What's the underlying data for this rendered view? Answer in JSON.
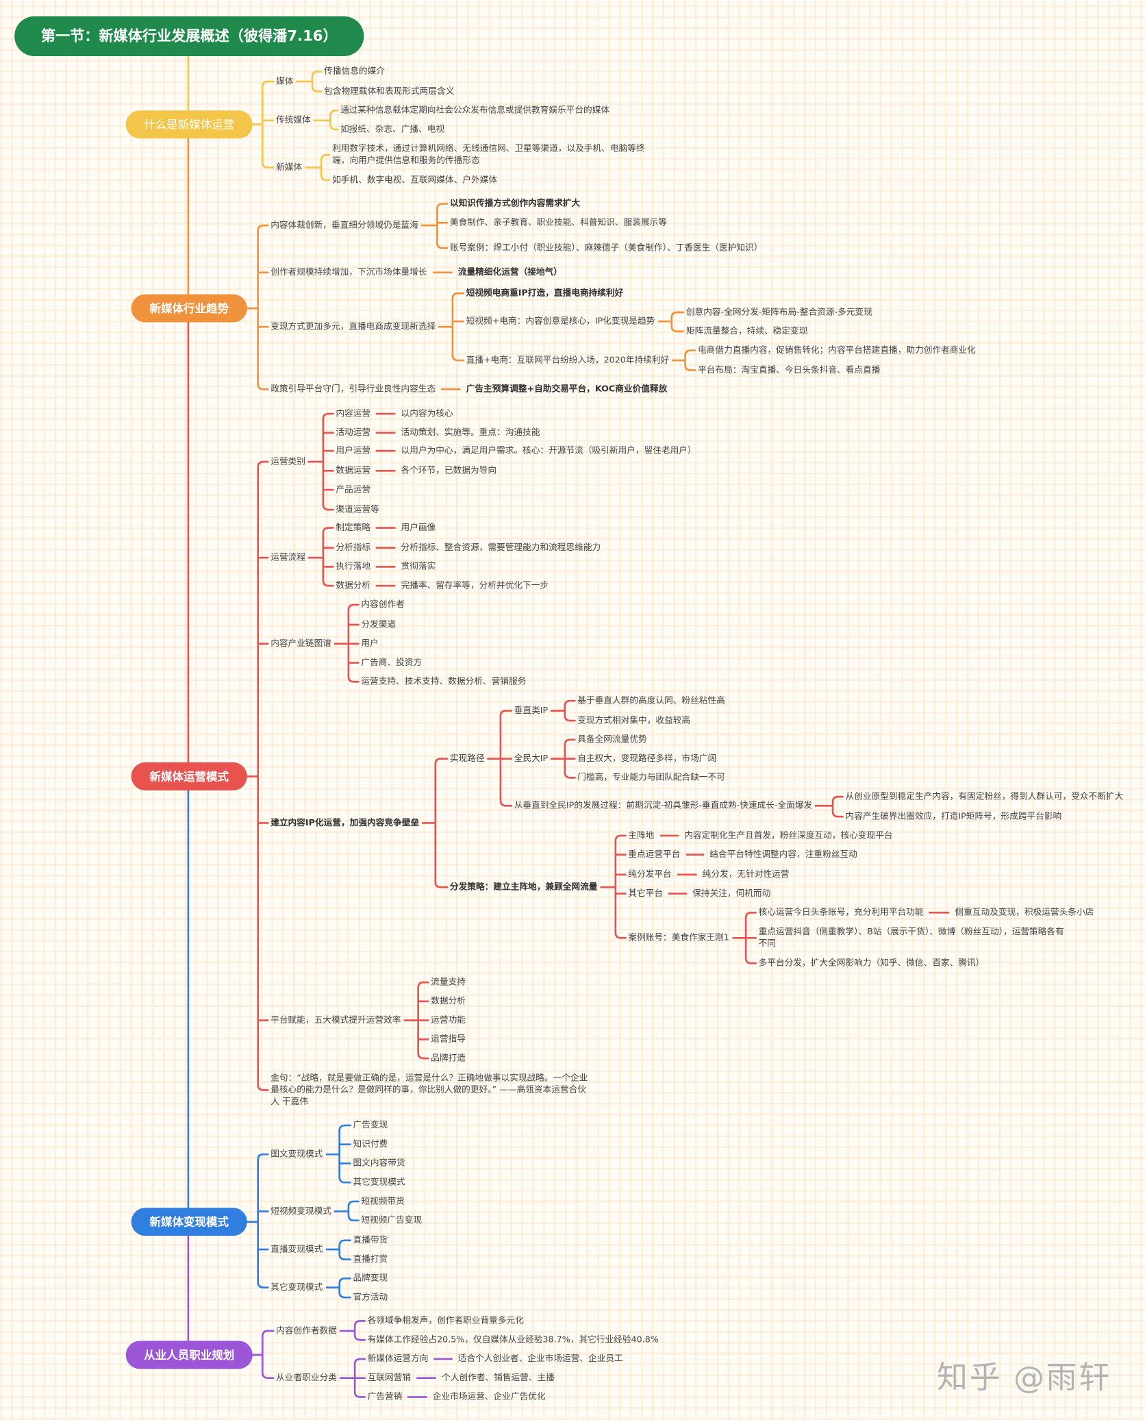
{
  "title": "第一节：新媒体行业发展概述（彼得潘7.16）",
  "watermark": "知乎 @雨轩",
  "colors": {
    "title": "#1f8a4c",
    "yellow": "#f3c64a",
    "orange": "#f0923b",
    "red": "#e8534f",
    "blue": "#2f7ee0",
    "purple": "#9b55d6"
  },
  "sections": [
    {
      "label": "什么是新媒体运营",
      "color": "#f3c64a",
      "branches": [
        {
          "text": "媒体",
          "children": [
            {
              "text": "传播信息的媒介"
            },
            {
              "text": "包含物理载体和表现形式两层含义"
            }
          ]
        },
        {
          "text": "传统媒体",
          "children": [
            {
              "text": "通过某种信息载体定期向社会公众发布信息或提供教育娱乐平台的媒体"
            },
            {
              "text": "如报纸、杂志、广播、电视"
            }
          ]
        },
        {
          "text": "新媒体",
          "children": [
            {
              "text": "利用数字技术，通过计算机网络、无线通信网、卫星等渠道，以及手机、电脑等终端，向用户提供信息和服务的传播形态"
            },
            {
              "text": "如手机、数字电视、互联网媒体、户外媒体"
            }
          ]
        }
      ]
    },
    {
      "label": "新媒体行业趋势",
      "color": "#f0923b",
      "branches": [
        {
          "text": "内容体裁创新，垂直细分领域仍是蓝海",
          "children": [
            {
              "text": "以知识传播方式创作内容需求扩大"
            },
            {
              "text": "美食制作、亲子教育、职业技能、科普知识、服装展示等"
            },
            {
              "text": "账号案例：焊工小付（职业技能）、麻辣德子（美食制作）、丁香医生（医护知识）"
            }
          ]
        },
        {
          "text": "创作者规模持续增加，下沉市场体量增长",
          "value": "流量精细化运营（接地气）"
        },
        {
          "text": "变现方式更加多元，直播电商成变现新选择",
          "children": [
            {
              "text": "短视频电商重IP打造，直播电商持续利好"
            },
            {
              "text": "短视频+电商：内容创意是核心，IP化变现是趋势",
              "children": [
                {
                  "text": "创意内容-全网分发-矩阵布局-整合资源-多元变现"
                },
                {
                  "text": "矩阵流量整合，持续、稳定变现"
                }
              ]
            },
            {
              "text": "直播+电商：互联网平台纷纷入场，2020年持续利好",
              "children": [
                {
                  "text": "电商借力直播内容，促销售转化；内容平台搭建直播，助力创作者商业化"
                },
                {
                  "text": "平台布局：淘宝直播、今日头条抖音、看点直播"
                }
              ]
            }
          ]
        },
        {
          "text": "政策引导平台守门，引导行业良性内容生态",
          "value": "广告主预算调整+自助交易平台，KOC商业价值释放"
        }
      ]
    },
    {
      "label": "新媒体运营模式",
      "color": "#e8534f",
      "branches": [
        {
          "text": "运营类别",
          "children": [
            {
              "text": "内容运营",
              "value": "以内容为核心"
            },
            {
              "text": "活动运营",
              "value": "活动策划、实施等。重点：沟通技能"
            },
            {
              "text": "用户运营",
              "value": "以用户为中心，满足用户需求。核心：开源节流（吸引新用户，留住老用户）"
            },
            {
              "text": "数据运营",
              "value": "各个环节，已数据为导向"
            },
            {
              "text": "产品运营"
            },
            {
              "text": "渠道运营等"
            }
          ]
        },
        {
          "text": "运营流程",
          "children": [
            {
              "text": "制定策略",
              "value": "用户画像"
            },
            {
              "text": "分析指标",
              "value": "分析指标、整合资源，需要管理能力和流程思维能力"
            },
            {
              "text": "执行落地",
              "value": "贯彻落实"
            },
            {
              "text": "数据分析",
              "value": "完播率、留存率等，分析并优化下一步"
            }
          ]
        },
        {
          "text": "内容产业链图谱",
          "children": [
            {
              "text": "内容创作者"
            },
            {
              "text": "分发渠道"
            },
            {
              "text": "用户"
            },
            {
              "text": "广告商、投资方"
            },
            {
              "text": "运营支持、技术支持、数据分析、营销服务"
            }
          ]
        },
        {
          "text": "建立内容IP化运营，加强内容竞争壁垒",
          "children": [
            {
              "text": "实现路径",
              "children": [
                {
                  "text": "垂直类IP",
                  "children": [
                    {
                      "text": "基于垂直人群的高度认同、粉丝粘性高"
                    },
                    {
                      "text": "变现方式相对集中，收益较高"
                    }
                  ]
                },
                {
                  "text": "全民大IP",
                  "children": [
                    {
                      "text": "具备全网流量优势"
                    },
                    {
                      "text": "自主权大，变现路径多样，市场广阔"
                    },
                    {
                      "text": "门槛高，专业能力与团队配合缺一不可"
                    }
                  ]
                },
                {
                  "text": "从垂直到全民IP的发展过程：前期沉淀-初具雏形-垂直成熟-快速成长-全面爆发",
                  "children": [
                    {
                      "text": "从创业原型到稳定生产内容，有固定粉丝，得到人群认可，受众不断扩大"
                    },
                    {
                      "text": "内容产生破界出圈效应，打造IP矩阵号，形成跨平台影响"
                    }
                  ]
                }
              ]
            },
            {
              "text": "分发策略：建立主阵地，兼顾全网流量",
              "children": [
                {
                  "text": "主阵地",
                  "value": "内容定制化生产且首发，粉丝深度互动，核心变现平台"
                },
                {
                  "text": "重点运营平台",
                  "value": "结合平台特性调整内容，注重粉丝互动"
                },
                {
                  "text": "纯分发平台",
                  "value": "纯分发，无针对性运营"
                },
                {
                  "text": "其它平台",
                  "value": "保持关注，伺机而动"
                },
                {
                  "text": "案例账号：美食作家王刚1",
                  "children": [
                    {
                      "text": "核心运营今日头条账号，充分利用平台功能",
                      "value": "侧重互动及变现，积极运营头条小店"
                    },
                    {
                      "text": "重点运营抖音（侧重教学）、B站（展示干货）、微博（粉丝互动），运营策略各有不同"
                    },
                    {
                      "text": "多平台分发，扩大全网影响力（知乎、微信、百家、腾讯）"
                    }
                  ]
                }
              ]
            }
          ]
        },
        {
          "text": "平台赋能，五大模式提升运营效率",
          "children": [
            {
              "text": "流量支持"
            },
            {
              "text": "数据分析"
            },
            {
              "text": "运营功能"
            },
            {
              "text": "运营指导"
            },
            {
              "text": "品牌打造"
            }
          ]
        },
        {
          "text": "金句：“战略，就是要做正确的是，运营是什么？正确地做事以实现战略。一个企业最核心的能力是什么？是做同样的事，你比别人做的更好。” ——高瓴资本运营合伙人 干嘉伟"
        }
      ]
    },
    {
      "label": "新媒体变现模式",
      "color": "#2f7ee0",
      "branches": [
        {
          "text": "图文变现模式",
          "children": [
            {
              "text": "广告变现"
            },
            {
              "text": "知识付费"
            },
            {
              "text": "图文内容带货"
            },
            {
              "text": "其它变现模式"
            }
          ]
        },
        {
          "text": "短视频变现模式",
          "children": [
            {
              "text": "短视频带货"
            },
            {
              "text": "短视频广告变现"
            }
          ]
        },
        {
          "text": "直播变现模式",
          "children": [
            {
              "text": "直播带货"
            },
            {
              "text": "直播打赏"
            }
          ]
        },
        {
          "text": "其它变现模式",
          "children": [
            {
              "text": "品牌变现"
            },
            {
              "text": "官方活动"
            }
          ]
        }
      ]
    },
    {
      "label": "从业人员职业规划",
      "color": "#9b55d6",
      "branches": [
        {
          "text": "内容创作者数据",
          "children": [
            {
              "text": "各领域争相发声，创作者职业背景多元化"
            },
            {
              "text": "有媒体工作经验占20.5%，仅自媒体从业经验38.7%，其它行业经验40.8%"
            }
          ]
        },
        {
          "text": "从业者职业分类",
          "children": [
            {
              "text": "新媒体运营方向",
              "value": "适合个人创业者、企业市场运营、企业员工"
            },
            {
              "text": "互联网营销",
              "value": "个人创作者、销售运营、主播"
            },
            {
              "text": "广告营销",
              "value": "企业市场运营、企业广告优化"
            }
          ]
        }
      ]
    }
  ]
}
